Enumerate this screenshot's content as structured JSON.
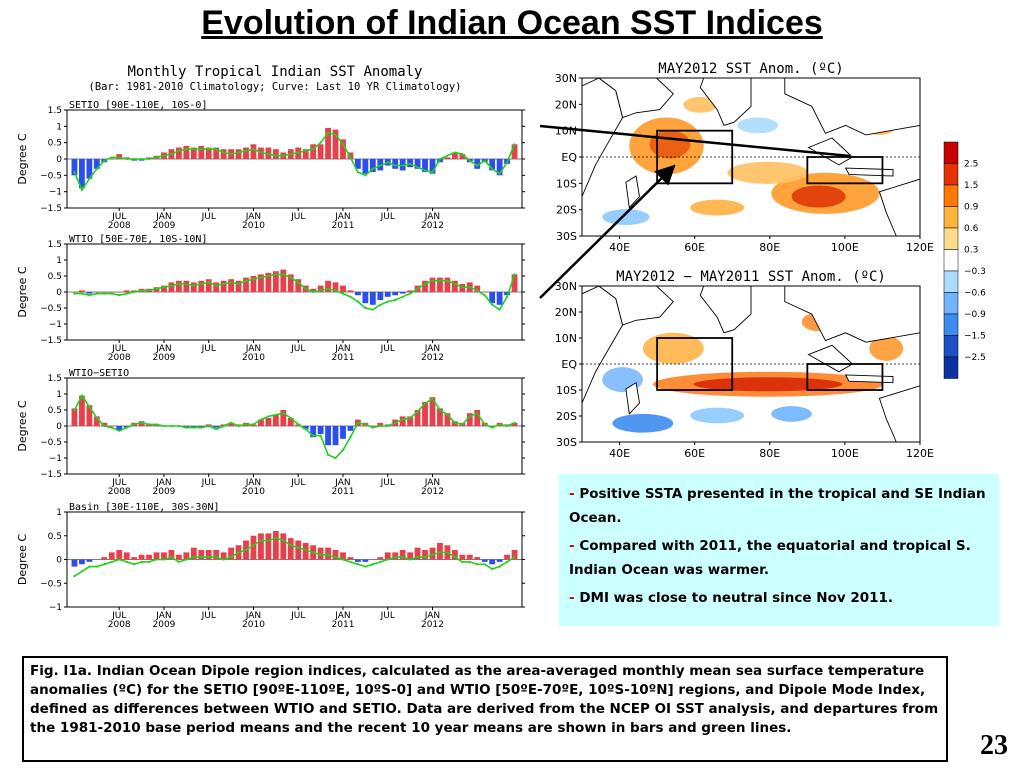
{
  "slide_title": "Evolution of Indian Ocean SST Indices",
  "figure": {
    "title": "Monthly Tropical Indian SST Anomaly",
    "subtitle": "(Bar: 1981-2010 Climatology; Curve: Last 10 YR Climatology)"
  },
  "chart_data": [
    {
      "type": "bar",
      "title": "SETIO [90E-110E, 10S-0]",
      "ylabel": "Degree C",
      "ylim": [
        -1.5,
        1.5
      ],
      "yticks": [
        "1.5",
        "1",
        "0.5",
        "0",
        "−0.5",
        "−1",
        "−1.5"
      ],
      "x_ticks": [
        [
          "JUL",
          "2008"
        ],
        [
          "JAN",
          "2009"
        ],
        [
          "JUL",
          ""
        ],
        [
          "JAN",
          "2010"
        ],
        [
          "JUL",
          ""
        ],
        [
          "JAN",
          "2011"
        ],
        [
          "JUL",
          ""
        ],
        [
          "JAN",
          "2012"
        ]
      ],
      "series": [
        {
          "kind": "bar",
          "values": [
            -0.5,
            -0.9,
            -0.6,
            -0.3,
            -0.1,
            0.0,
            0.15,
            0.05,
            -0.05,
            -0.05,
            0.05,
            0.1,
            0.2,
            0.3,
            0.35,
            0.4,
            0.35,
            0.4,
            0.35,
            0.35,
            0.3,
            0.3,
            0.3,
            0.35,
            0.45,
            0.35,
            0.35,
            0.3,
            0.2,
            0.3,
            0.35,
            0.3,
            0.45,
            0.45,
            0.95,
            0.9,
            0.6,
            0.2,
            -0.3,
            -0.45,
            -0.4,
            -0.35,
            -0.2,
            -0.3,
            -0.35,
            -0.25,
            -0.3,
            -0.4,
            -0.45,
            -0.1,
            0.05,
            0.2,
            0.15,
            -0.1,
            -0.3,
            -0.1,
            -0.35,
            -0.5,
            -0.15,
            0.45
          ]
        },
        {
          "kind": "line",
          "values": [
            -0.4,
            -0.95,
            -0.6,
            -0.3,
            -0.05,
            0.05,
            0.05,
            0.0,
            0.0,
            0.0,
            0.0,
            0.05,
            0.1,
            0.15,
            0.25,
            0.3,
            0.3,
            0.3,
            0.3,
            0.3,
            0.2,
            0.15,
            0.2,
            0.25,
            0.3,
            0.2,
            0.15,
            0.1,
            0.1,
            0.15,
            0.2,
            0.25,
            0.3,
            0.5,
            0.8,
            0.75,
            0.45,
            0.05,
            -0.4,
            -0.5,
            -0.3,
            -0.2,
            -0.1,
            -0.2,
            -0.2,
            -0.15,
            -0.25,
            -0.35,
            -0.4,
            0.0,
            0.1,
            0.2,
            0.15,
            -0.05,
            -0.2,
            -0.05,
            -0.3,
            -0.45,
            -0.1,
            0.45
          ]
        }
      ]
    },
    {
      "type": "bar",
      "title": "WTIO [50E-70E, 10S-10N]",
      "ylabel": "Degree C",
      "ylim": [
        -1.5,
        1.5
      ],
      "yticks": [
        "1.5",
        "1",
        "0.5",
        "0",
        "−0.5",
        "−1",
        "−1.5"
      ],
      "x_ticks": [
        [
          "JUL",
          "2008"
        ],
        [
          "JAN",
          "2009"
        ],
        [
          "JUL",
          ""
        ],
        [
          "JAN",
          "2010"
        ],
        [
          "JUL",
          ""
        ],
        [
          "JAN",
          "2011"
        ],
        [
          "JUL",
          ""
        ],
        [
          "JAN",
          "2012"
        ]
      ],
      "series": [
        {
          "kind": "bar",
          "values": [
            0.0,
            0.05,
            -0.05,
            0.0,
            0.0,
            0.0,
            0.0,
            0.05,
            0.05,
            0.1,
            0.1,
            0.15,
            0.2,
            0.3,
            0.35,
            0.35,
            0.3,
            0.35,
            0.4,
            0.3,
            0.35,
            0.4,
            0.35,
            0.45,
            0.5,
            0.55,
            0.6,
            0.65,
            0.7,
            0.55,
            0.4,
            0.2,
            0.1,
            0.2,
            0.35,
            0.3,
            0.2,
            0.05,
            -0.1,
            -0.35,
            -0.4,
            -0.25,
            -0.15,
            -0.1,
            -0.05,
            0.05,
            0.2,
            0.35,
            0.45,
            0.45,
            0.45,
            0.35,
            0.25,
            0.3,
            0.2,
            0.0,
            -0.35,
            -0.4,
            -0.1,
            0.55
          ]
        },
        {
          "kind": "line",
          "values": [
            -0.05,
            -0.05,
            -0.1,
            -0.05,
            -0.05,
            -0.05,
            -0.1,
            -0.05,
            0.0,
            0.05,
            0.05,
            0.1,
            0.15,
            0.2,
            0.25,
            0.25,
            0.2,
            0.25,
            0.3,
            0.2,
            0.25,
            0.3,
            0.25,
            0.35,
            0.4,
            0.45,
            0.5,
            0.55,
            0.55,
            0.45,
            0.3,
            0.1,
            0.0,
            0.05,
            0.1,
            0.05,
            -0.05,
            -0.15,
            -0.3,
            -0.5,
            -0.55,
            -0.4,
            -0.3,
            -0.25,
            -0.15,
            -0.05,
            0.1,
            0.25,
            0.35,
            0.35,
            0.35,
            0.25,
            0.15,
            0.15,
            0.05,
            -0.1,
            -0.4,
            -0.55,
            -0.15,
            0.55
          ]
        }
      ]
    },
    {
      "type": "bar",
      "title": "WTIO−SETIO",
      "ylabel": "Degree C",
      "ylim": [
        -1.5,
        1.5
      ],
      "yticks": [
        "1.5",
        "1",
        "0.5",
        "0",
        "−0.5",
        "−1",
        "−1.5"
      ],
      "x_ticks": [
        [
          "JUL",
          "2008"
        ],
        [
          "JAN",
          "2009"
        ],
        [
          "JUL",
          ""
        ],
        [
          "JAN",
          "2010"
        ],
        [
          "JUL",
          ""
        ],
        [
          "JAN",
          "2011"
        ],
        [
          "JUL",
          ""
        ],
        [
          "JAN",
          "2012"
        ]
      ],
      "series": [
        {
          "kind": "bar",
          "values": [
            0.55,
            0.95,
            0.65,
            0.3,
            0.1,
            0.0,
            -0.15,
            -0.05,
            0.1,
            0.15,
            0.05,
            0.05,
            0.0,
            0.0,
            0.0,
            -0.05,
            -0.05,
            -0.05,
            0.05,
            -0.05,
            0.05,
            0.1,
            0.05,
            0.1,
            0.05,
            0.2,
            0.25,
            0.35,
            0.5,
            0.25,
            0.05,
            -0.1,
            -0.35,
            -0.25,
            -0.6,
            -0.6,
            -0.4,
            -0.15,
            0.2,
            0.1,
            0.0,
            0.1,
            0.05,
            0.2,
            0.3,
            0.3,
            0.5,
            0.75,
            0.9,
            0.55,
            0.4,
            0.15,
            0.1,
            0.4,
            0.5,
            0.1,
            0.0,
            0.1,
            0.05,
            0.1
          ]
        },
        {
          "kind": "line",
          "values": [
            0.5,
            0.95,
            0.6,
            0.25,
            0.0,
            -0.05,
            -0.15,
            -0.05,
            0.05,
            0.1,
            0.05,
            0.05,
            0.0,
            0.0,
            0.0,
            -0.05,
            -0.05,
            -0.05,
            0.0,
            -0.1,
            0.0,
            0.1,
            0.0,
            0.05,
            0.05,
            0.2,
            0.3,
            0.35,
            0.4,
            0.25,
            0.05,
            -0.1,
            -0.3,
            -0.3,
            -0.9,
            -1.0,
            -0.75,
            -0.35,
            0.1,
            0.05,
            -0.05,
            0.0,
            0.0,
            0.1,
            0.2,
            0.25,
            0.45,
            0.7,
            0.85,
            0.5,
            0.35,
            0.1,
            0.05,
            0.3,
            0.4,
            0.05,
            -0.05,
            0.05,
            0.0,
            0.1
          ]
        }
      ]
    },
    {
      "type": "bar",
      "title": "Basin [30E-110E, 30S-30N]",
      "ylabel": "Degree C",
      "ylim": [
        -1,
        1
      ],
      "yticks": [
        "1",
        "0.5",
        "0",
        "−0.5",
        "−1"
      ],
      "x_ticks": [
        [
          "JUL",
          "2008"
        ],
        [
          "JAN",
          "2009"
        ],
        [
          "JUL",
          ""
        ],
        [
          "JAN",
          "2010"
        ],
        [
          "JUL",
          ""
        ],
        [
          "JAN",
          "2011"
        ],
        [
          "JUL",
          ""
        ],
        [
          "JAN",
          "2012"
        ]
      ],
      "series": [
        {
          "kind": "bar",
          "values": [
            -0.15,
            -0.1,
            -0.05,
            0.0,
            0.05,
            0.15,
            0.2,
            0.15,
            0.05,
            0.1,
            0.1,
            0.15,
            0.15,
            0.2,
            0.1,
            0.15,
            0.25,
            0.2,
            0.2,
            0.2,
            0.15,
            0.25,
            0.3,
            0.4,
            0.5,
            0.55,
            0.55,
            0.6,
            0.55,
            0.45,
            0.4,
            0.35,
            0.3,
            0.25,
            0.25,
            0.2,
            0.15,
            0.05,
            -0.05,
            -0.05,
            0.0,
            0.05,
            0.15,
            0.15,
            0.2,
            0.15,
            0.25,
            0.2,
            0.25,
            0.35,
            0.3,
            0.2,
            0.1,
            0.1,
            0.05,
            -0.05,
            -0.1,
            -0.05,
            0.1,
            0.2
          ]
        },
        {
          "kind": "line",
          "values": [
            -0.35,
            -0.25,
            -0.15,
            -0.15,
            -0.1,
            -0.05,
            0.0,
            -0.05,
            -0.1,
            -0.05,
            -0.05,
            0.0,
            0.0,
            0.05,
            -0.05,
            0.0,
            0.05,
            0.05,
            0.05,
            0.05,
            0.0,
            0.05,
            0.15,
            0.2,
            0.3,
            0.4,
            0.4,
            0.45,
            0.4,
            0.3,
            0.25,
            0.2,
            0.15,
            0.1,
            0.1,
            0.05,
            0.0,
            -0.05,
            -0.1,
            -0.15,
            -0.1,
            -0.05,
            0.0,
            0.05,
            0.05,
            0.0,
            0.05,
            0.05,
            0.1,
            0.15,
            0.15,
            0.05,
            -0.05,
            -0.05,
            -0.1,
            -0.1,
            -0.2,
            -0.15,
            -0.05,
            0.05
          ]
        }
      ]
    }
  ],
  "maps": [
    {
      "title": "MAY2012 SST Anom. (ºC)",
      "lat_labels": [
        "30N",
        "20N",
        "10N",
        "EQ",
        "10S",
        "20S",
        "30S"
      ],
      "lon_labels": [
        "40E",
        "60E",
        "80E",
        "100E",
        "120E"
      ]
    },
    {
      "title": "MAY2012 − MAY2011 SST Anom. (ºC)",
      "lat_labels": [
        "30N",
        "20N",
        "10N",
        "EQ",
        "10S",
        "20S",
        "30S"
      ],
      "lon_labels": [
        "40E",
        "60E",
        "80E",
        "100E",
        "120E"
      ]
    }
  ],
  "colorbar": {
    "labels": [
      "2.5",
      "1.5",
      "0.9",
      "0.6",
      "0.3",
      "−0.3",
      "−0.6",
      "−0.9",
      "−1.5",
      "−2.5"
    ],
    "colors": [
      "#c80000",
      "#e63200",
      "#ff7800",
      "#ffb43c",
      "#ffdc8c",
      "#ffffff",
      "#aadcff",
      "#6eb4ff",
      "#3c8cf0",
      "#1e50c8",
      "#0a32a0"
    ]
  },
  "colors": {
    "bar_positive": "#e8404a",
    "bar_negative": "#2a4ef0",
    "line": "#1fd11f",
    "notes_bg": "#ccffff"
  },
  "notes": [
    "Positive SSTA presented in the tropical and SE Indian Ocean.",
    "Compared with 2011, the equatorial and tropical S. Indian Ocean was warmer.",
    "DMI was close to neutral since Nov 2011."
  ],
  "note_dash": "-",
  "caption": "Fig. I1a. Indian Ocean Dipole region indices, calculated as the area-averaged monthly mean sea surface temperature anomalies (ºC) for the SETIO [90ºE-110ºE, 10ºS-0] and WTIO [50ºE-70ºE, 10ºS-10ºN] regions, and Dipole Mode Index, defined as differences between WTIO and SETIO. Data are derived from the NCEP OI SST analysis, and departures from the 1981-2010 base period means and the recent 10 year means are shown in bars and green lines.",
  "page_number": "23"
}
